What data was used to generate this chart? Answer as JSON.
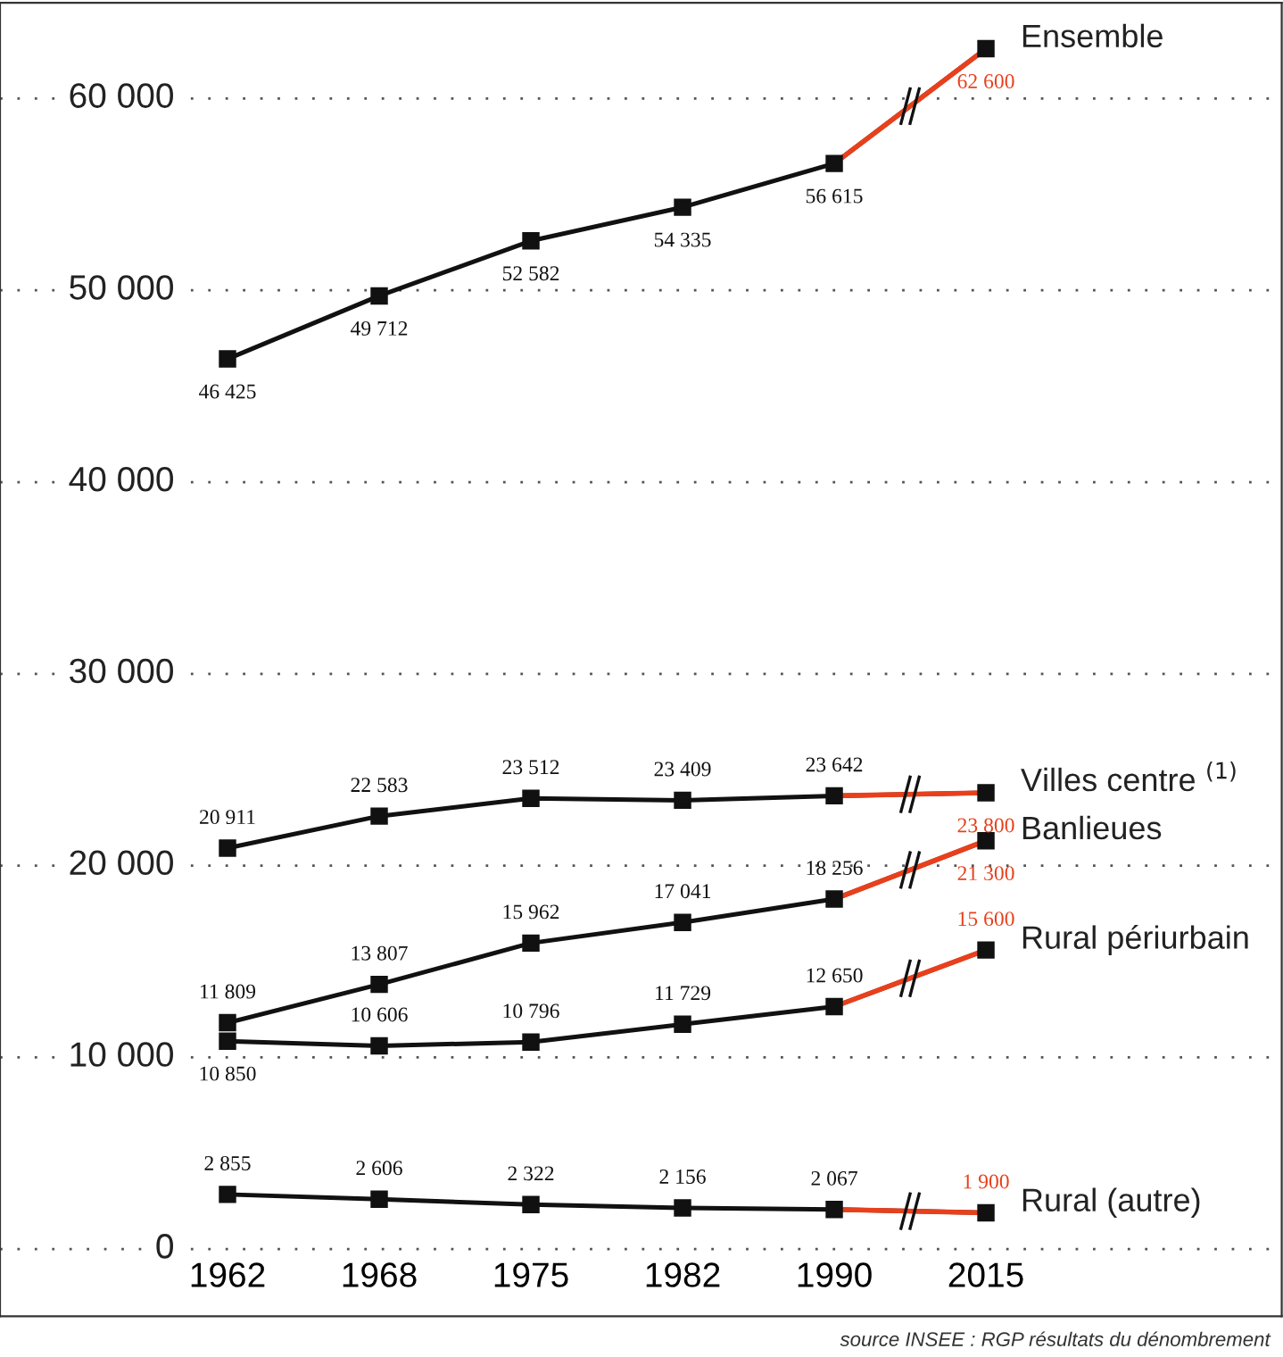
{
  "chart_data": {
    "type": "line",
    "categories": [
      "1962",
      "1968",
      "1975",
      "1982",
      "1990",
      "2015"
    ],
    "series": [
      {
        "name": "Ensemble",
        "color": "#111111",
        "colors": [
          "#111111",
          "#111111",
          "#111111",
          "#111111",
          "#111111",
          "#e8401c"
        ],
        "values": [
          46425,
          49712,
          52582,
          54335,
          56615,
          62600
        ],
        "value_labels": [
          "46 425",
          "49 712",
          "52 582",
          "54 335",
          "56 615",
          "62 600"
        ]
      },
      {
        "name": "Villes centre $^{(1)}$",
        "color": "#111111",
        "colors": [
          "#111111",
          "#111111",
          "#111111",
          "#111111",
          "#111111",
          "#e8401c"
        ],
        "values": [
          20911,
          22583,
          23512,
          23409,
          23642,
          23800
        ],
        "value_labels": [
          "20 911",
          "22 583",
          "23 512",
          "23 409",
          "23 642",
          "23 800"
        ]
      },
      {
        "name": "Banlieues",
        "color": "#111111",
        "colors": [
          "#111111",
          "#111111",
          "#111111",
          "#111111",
          "#111111",
          "#e8401c"
        ],
        "values": [
          11809,
          13807,
          15962,
          17041,
          18256,
          21300
        ],
        "value_labels": [
          "11 809",
          "13 807",
          "15 962",
          "17 041",
          "18 256",
          "21 300"
        ]
      },
      {
        "name": "Rural périurbain",
        "color": "#111111",
        "colors": [
          "#111111",
          "#111111",
          "#111111",
          "#111111",
          "#111111",
          "#e8401c"
        ],
        "values": [
          10850,
          10606,
          10796,
          11729,
          12650,
          15600
        ],
        "value_labels": [
          "10 850",
          "10 606",
          "10 796",
          "11 729",
          "12 650",
          "15 600"
        ]
      },
      {
        "name": "Rural (autre)",
        "color": "#111111",
        "colors": [
          "#111111",
          "#111111",
          "#111111",
          "#111111",
          "#111111",
          "#e8401c"
        ],
        "values": [
          2855,
          2606,
          2322,
          2156,
          2067,
          1900
        ],
        "value_labels": [
          "2 855",
          "2 606",
          "2 322",
          "2 156",
          "2 067",
          "1 900"
        ]
      }
    ],
    "ylim": [
      -3500,
      65000
    ],
    "yticks": [
      {
        "value": 0,
        "label": "0"
      },
      {
        "value": 10000,
        "label": "10 000"
      },
      {
        "value": 20000,
        "label": "20 000"
      },
      {
        "value": 30000,
        "label": "30 000"
      },
      {
        "value": 40000,
        "label": "40 000"
      },
      {
        "value": 50000,
        "label": "50 000"
      },
      {
        "value": 60000,
        "label": "60 000"
      }
    ],
    "grid": "y",
    "marker": "square",
    "line_style": "solid",
    "legend": false,
    "annotations": [
      "source INSEE : RGP résultats du dénombrement"
    ]
  }
}
